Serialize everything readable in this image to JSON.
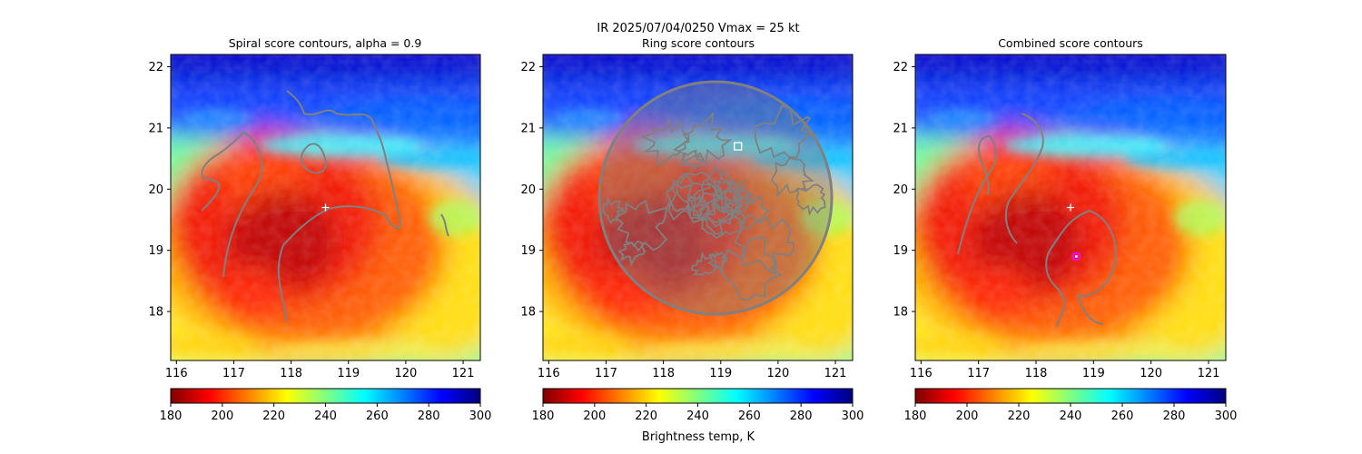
{
  "suptitle_line1": "IR  2025/07/04/0250    Vmax = 25 kt",
  "colorbar_label": "Brightness temp, K",
  "colormap": [
    "#7f0000",
    "#ff0000",
    "#ff8000",
    "#ffff00",
    "#80ff80",
    "#00ffff",
    "#0080ff",
    "#0000ff",
    "#00007f"
  ],
  "chart_data": [
    {
      "type": "heatmap",
      "title": "Spiral score contours, alpha =  0.9",
      "xlim": [
        115.9,
        121.3
      ],
      "ylim": [
        17.2,
        22.2
      ],
      "xticks": [
        116,
        117,
        118,
        119,
        120,
        121
      ],
      "yticks": [
        18,
        19,
        20,
        21,
        22
      ],
      "clim": [
        180,
        300
      ],
      "colorbar_ticks": [
        180,
        200,
        220,
        240,
        260,
        280,
        300
      ],
      "contour_color": "#808080",
      "markers": [
        {
          "symbol": "plus",
          "x": 118.6,
          "y": 19.7,
          "color": "#ffffff"
        }
      ]
    },
    {
      "type": "heatmap",
      "title": "Ring score contours",
      "xlim": [
        115.9,
        121.3
      ],
      "ylim": [
        17.2,
        22.2
      ],
      "xticks": [
        116,
        117,
        118,
        119,
        120,
        121
      ],
      "yticks": [
        18,
        19,
        20,
        21,
        22
      ],
      "clim": [
        180,
        300
      ],
      "colorbar_ticks": [
        180,
        200,
        220,
        240,
        260,
        280,
        300
      ],
      "contour_color": "#808080",
      "markers": [
        {
          "symbol": "square",
          "x": 119.3,
          "y": 20.7,
          "color": "#ffffff"
        }
      ]
    },
    {
      "type": "heatmap",
      "title": "Combined score contours",
      "xlim": [
        115.9,
        121.3
      ],
      "ylim": [
        17.2,
        22.2
      ],
      "xticks": [
        116,
        117,
        118,
        119,
        120,
        121
      ],
      "yticks": [
        18,
        19,
        20,
        21,
        22
      ],
      "clim": [
        180,
        300
      ],
      "colorbar_ticks": [
        180,
        200,
        220,
        240,
        260,
        280,
        300
      ],
      "contour_color": "#808080",
      "markers": [
        {
          "symbol": "plus",
          "x": 118.6,
          "y": 19.7,
          "color": "#ffffff"
        },
        {
          "symbol": "circle",
          "x": 118.7,
          "y": 18.9,
          "color": "#ff00ff"
        }
      ]
    }
  ]
}
